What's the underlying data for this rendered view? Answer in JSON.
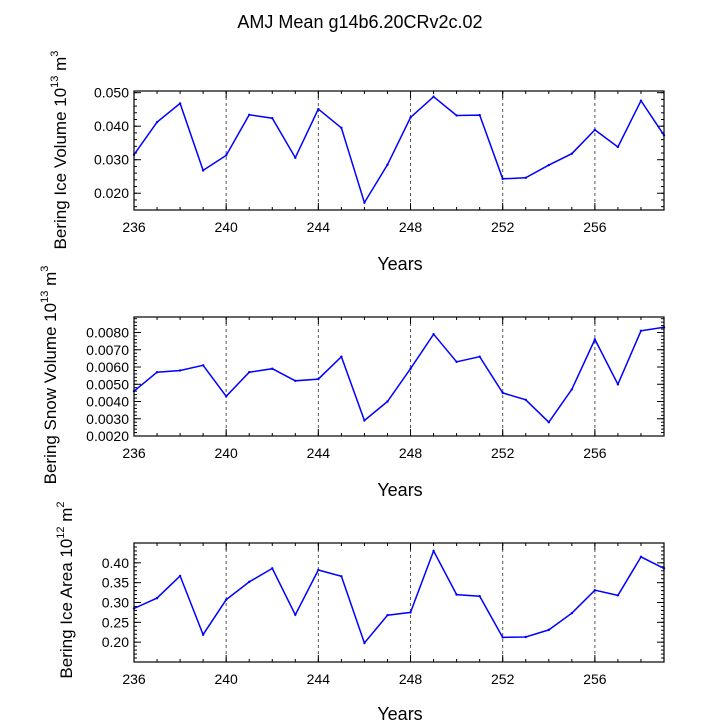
{
  "title": "AMJ Mean g14b6.20CRv2c.02",
  "colors": {
    "series": "#0000ff",
    "axis": "#000000",
    "grid": "#555555"
  },
  "chart_data": [
    {
      "type": "line",
      "ylabel": "Bering Ice Volume 10",
      "ylabel_exp": "13",
      "ylabel_unit": " m",
      "ylabel_unit_exp": "3",
      "xlabel": "Years",
      "xlim": [
        236,
        259
      ],
      "ylim": [
        0.015,
        0.0505
      ],
      "xticks": [
        236,
        240,
        244,
        248,
        252,
        256
      ],
      "xtick_labels": [
        "236",
        "240",
        "244",
        "248",
        "252",
        "256"
      ],
      "yticks": [
        0.02,
        0.03,
        0.04,
        0.05
      ],
      "ytick_labels": [
        "0.020",
        "0.030",
        "0.040",
        "0.050"
      ],
      "grid": "vertical dashed at major x ticks",
      "x": [
        236,
        237,
        238,
        239,
        240,
        241,
        242,
        243,
        244,
        245,
        246,
        247,
        248,
        249,
        250,
        251,
        252,
        253,
        254,
        255,
        256,
        257,
        258,
        259
      ],
      "values": [
        0.0315,
        0.0412,
        0.0468,
        0.0268,
        0.0313,
        0.0434,
        0.0424,
        0.0306,
        0.0451,
        0.0395,
        0.0172,
        0.0285,
        0.0426,
        0.0488,
        0.0432,
        0.0433,
        0.0243,
        0.0246,
        0.0284,
        0.0318,
        0.0389,
        0.0338,
        0.0476,
        0.0373
      ]
    },
    {
      "type": "line",
      "ylabel": "Bering Snow Volume 10",
      "ylabel_exp": "13",
      "ylabel_unit": " m",
      "ylabel_unit_exp": "3",
      "xlabel": "Years",
      "xlim": [
        236,
        259
      ],
      "ylim": [
        0.002,
        0.0089
      ],
      "xticks": [
        236,
        240,
        244,
        248,
        252,
        256
      ],
      "xtick_labels": [
        "236",
        "240",
        "244",
        "248",
        "252",
        "256"
      ],
      "yticks": [
        0.002,
        0.003,
        0.004,
        0.005,
        0.006,
        0.007,
        0.008
      ],
      "ytick_labels": [
        "0.0020",
        "0.0030",
        "0.0040",
        "0.0050",
        "0.0060",
        "0.0070",
        "0.0080"
      ],
      "grid": "vertical dashed at major x ticks",
      "x": [
        236,
        237,
        238,
        239,
        240,
        241,
        242,
        243,
        244,
        245,
        246,
        247,
        248,
        249,
        250,
        251,
        252,
        253,
        254,
        255,
        256,
        257,
        258,
        259
      ],
      "values": [
        0.0046,
        0.0057,
        0.0058,
        0.0061,
        0.0043,
        0.0057,
        0.0059,
        0.0052,
        0.0053,
        0.0066,
        0.0029,
        0.004,
        0.0059,
        0.0079,
        0.0063,
        0.0066,
        0.0045,
        0.0041,
        0.0028,
        0.0047,
        0.0076,
        0.005,
        0.0081,
        0.0083
      ]
    },
    {
      "type": "line",
      "ylabel": "Bering Ice Area 10",
      "ylabel_exp": "12",
      "ylabel_unit": " m",
      "ylabel_unit_exp": "2",
      "xlabel": "Years",
      "xlim": [
        236,
        259
      ],
      "ylim": [
        0.15,
        0.45
      ],
      "xticks": [
        236,
        240,
        244,
        248,
        252,
        256
      ],
      "xtick_labels": [
        "236",
        "240",
        "244",
        "248",
        "252",
        "256"
      ],
      "yticks": [
        0.2,
        0.25,
        0.3,
        0.35,
        0.4
      ],
      "ytick_labels": [
        "0.20",
        "0.25",
        "0.30",
        "0.35",
        "0.40"
      ],
      "grid": "vertical dashed at major x ticks",
      "x": [
        236,
        237,
        238,
        239,
        240,
        241,
        242,
        243,
        244,
        245,
        246,
        247,
        248,
        249,
        250,
        251,
        252,
        253,
        254,
        255,
        256,
        257,
        258,
        259
      ],
      "values": [
        0.285,
        0.311,
        0.367,
        0.219,
        0.307,
        0.352,
        0.386,
        0.269,
        0.382,
        0.366,
        0.198,
        0.268,
        0.275,
        0.43,
        0.32,
        0.316,
        0.212,
        0.213,
        0.231,
        0.273,
        0.331,
        0.318,
        0.415,
        0.386
      ]
    }
  ]
}
